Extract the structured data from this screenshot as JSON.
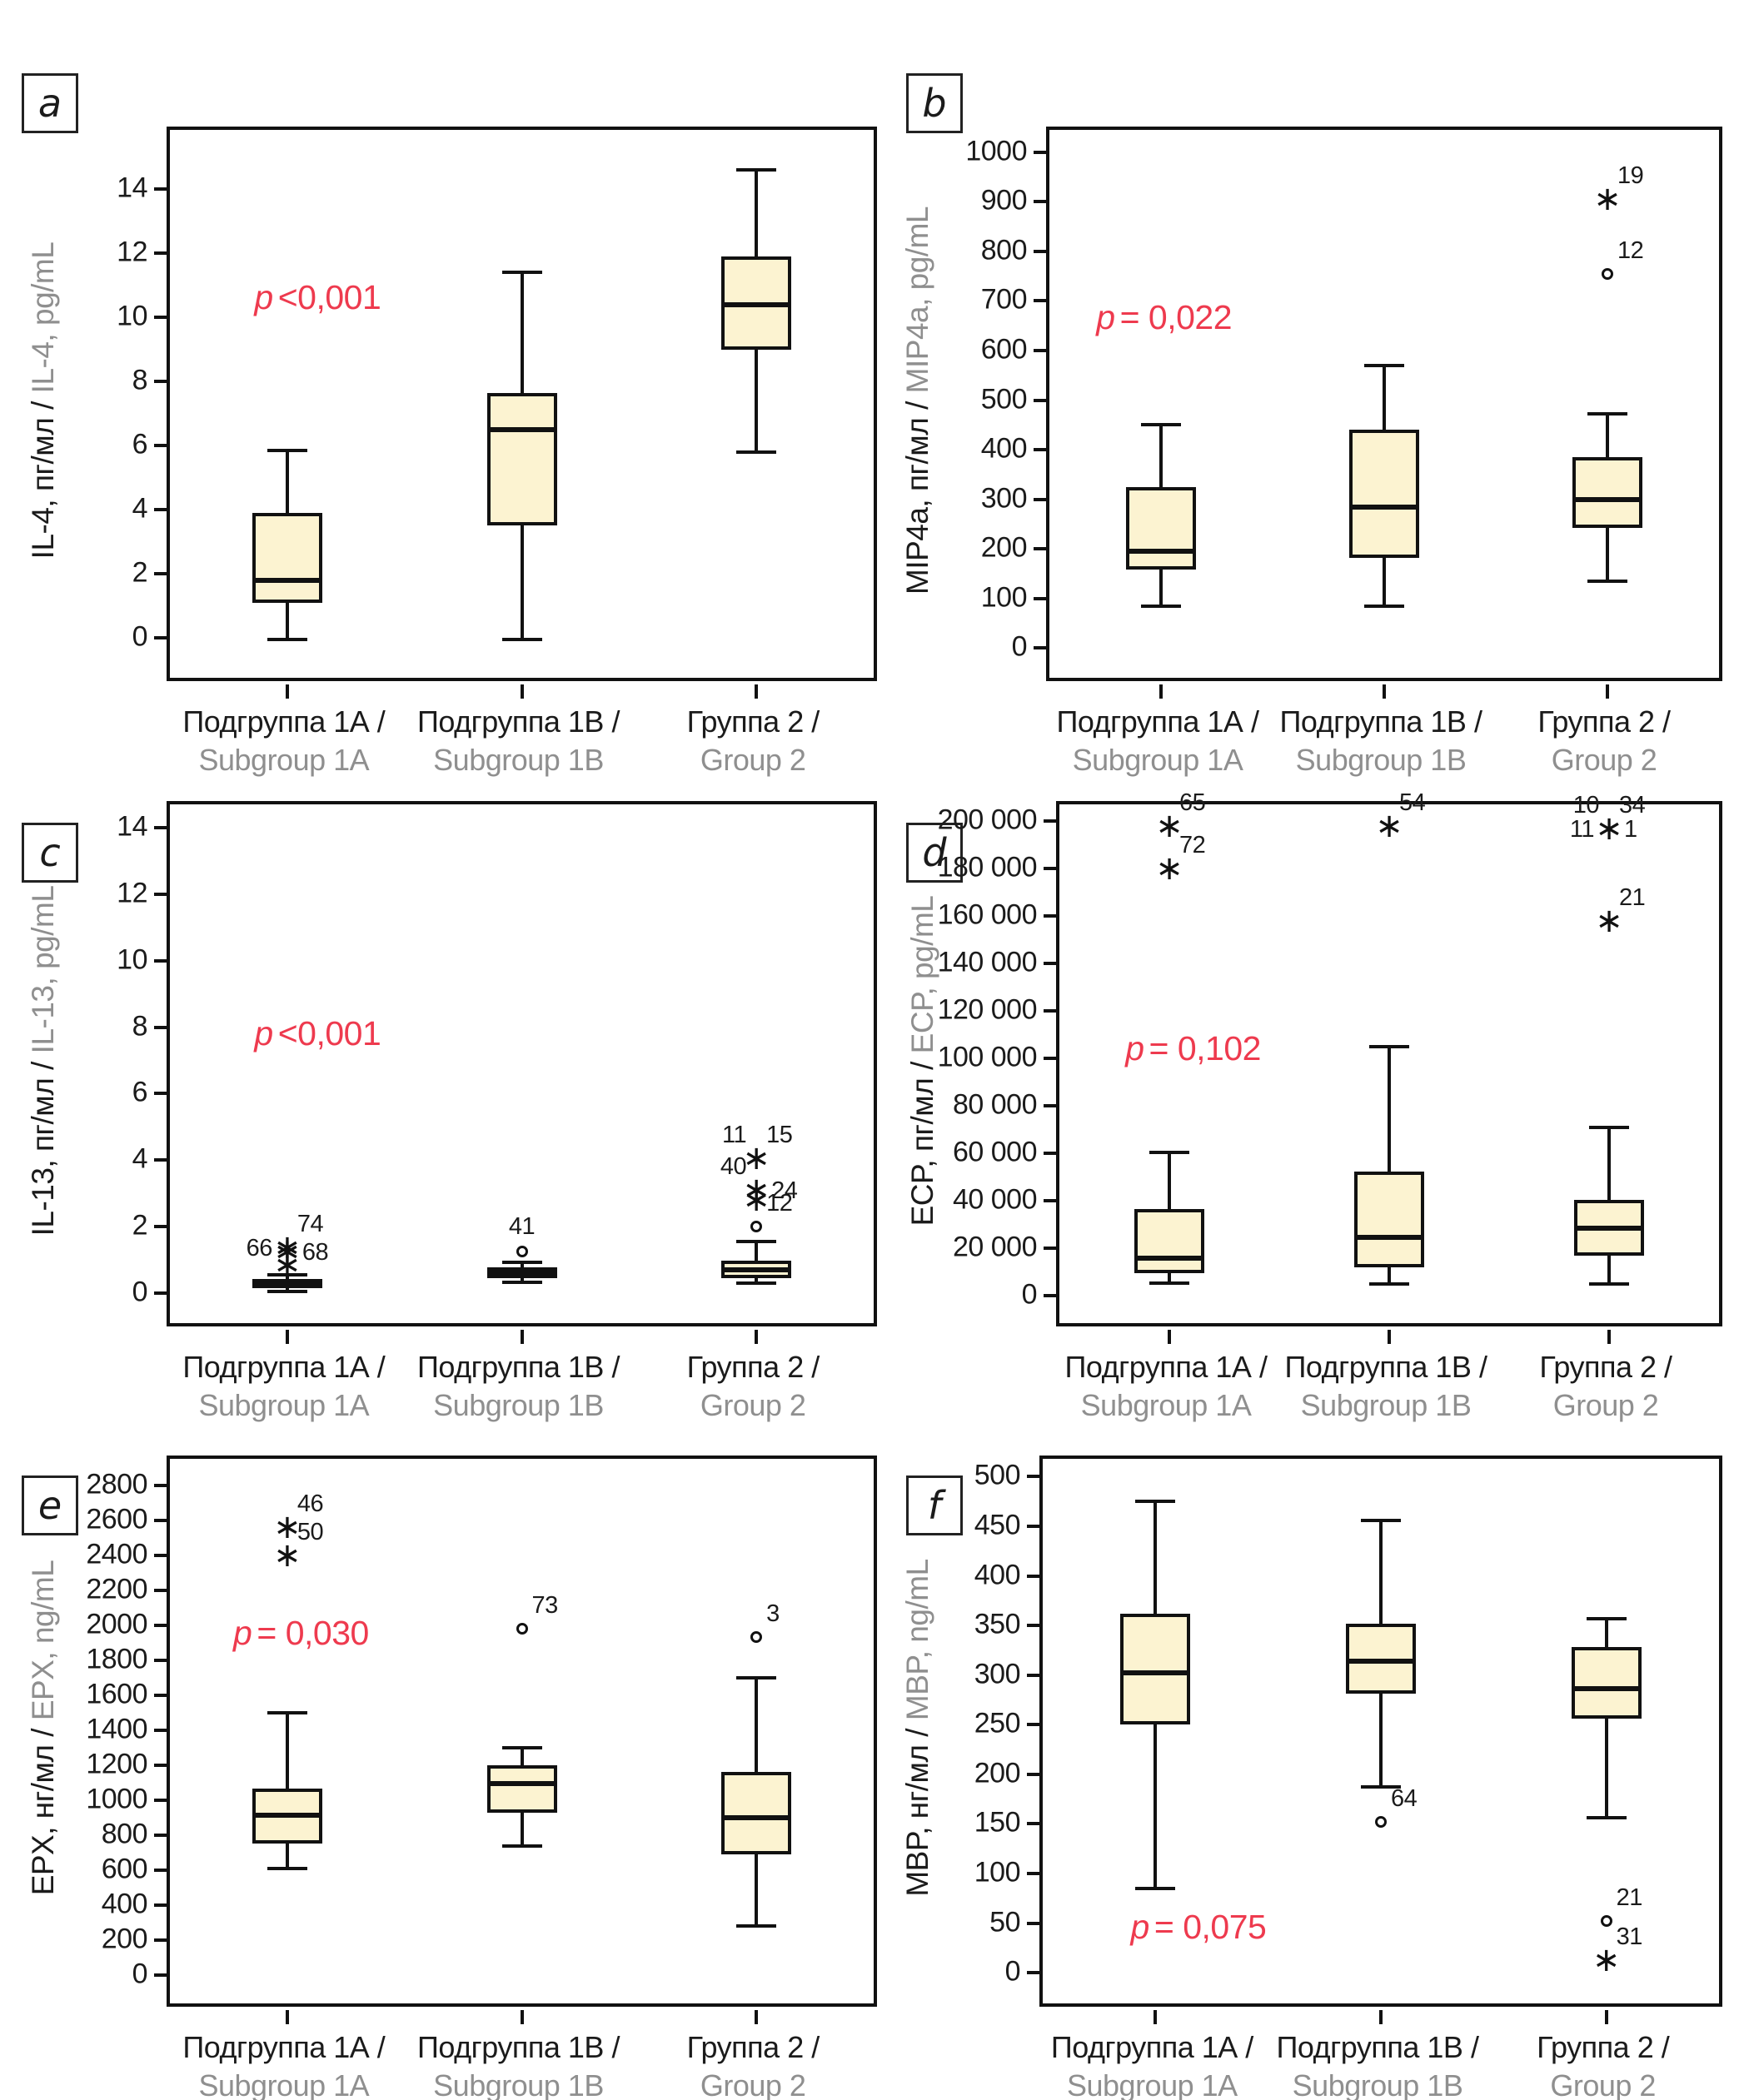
{
  "figure_title": "",
  "colors": {
    "box_fill": "#fcf3d1",
    "line": "#111111",
    "p_value_red": "#ee3a4e",
    "secondary_text_gray": "#8f8f8f",
    "text_black": "#1b1b1b"
  },
  "categories": [
    {
      "ru": "Подгруппа 1А /",
      "en": "Subgroup 1A"
    },
    {
      "ru": "Подгруппа 1В /",
      "en": "Subgroup 1B"
    },
    {
      "ru": "Группа 2 /",
      "en": "Group 2"
    }
  ],
  "chart_data": [
    {
      "panel": "a",
      "type": "box",
      "ylabel_ru": "IL-4, пг/мл / ",
      "ylabel_en": "IL-4, pg/mL",
      "p_italic": "p",
      "p_rest": "<0,001",
      "p_xf": 0.12,
      "p_y": 10.6,
      "ylim": [
        -1.25,
        15.85
      ],
      "ticks": [
        {
          "v": 0,
          "t": "0"
        },
        {
          "v": 2,
          "t": "2"
        },
        {
          "v": 4,
          "t": "4"
        },
        {
          "v": 6,
          "t": "6"
        },
        {
          "v": 8,
          "t": "8"
        },
        {
          "v": 10,
          "t": "10"
        },
        {
          "v": 12,
          "t": "12"
        },
        {
          "v": 14,
          "t": "14"
        }
      ],
      "boxes": [
        {
          "lo": -0.05,
          "q1": 1.1,
          "med": 1.8,
          "q3": 3.9,
          "hi": 5.85,
          "outliers": []
        },
        {
          "lo": -0.05,
          "q1": 3.5,
          "med": 6.5,
          "q3": 7.65,
          "hi": 11.4,
          "outliers": []
        },
        {
          "lo": 5.8,
          "q1": 9.0,
          "med": 10.4,
          "q3": 11.9,
          "hi": 14.6,
          "outliers": []
        }
      ]
    },
    {
      "panel": "b",
      "type": "box",
      "ylabel_ru": "MIP4a, пг/мл / ",
      "ylabel_en": "MIP4a, pg/mL",
      "p_italic": "p",
      "p_rest": "= 0,022",
      "p_xf": 0.07,
      "p_y": 665,
      "ylim": [
        -60,
        1045
      ],
      "ticks": [
        {
          "v": 0,
          "t": "0"
        },
        {
          "v": 100,
          "t": "100"
        },
        {
          "v": 200,
          "t": "200"
        },
        {
          "v": 300,
          "t": "300"
        },
        {
          "v": 400,
          "t": "400"
        },
        {
          "v": 500,
          "t": "500"
        },
        {
          "v": 600,
          "t": "600"
        },
        {
          "v": 700,
          "t": "700"
        },
        {
          "v": 800,
          "t": "800"
        },
        {
          "v": 900,
          "t": "900"
        },
        {
          "v": 1000,
          "t": "1000"
        }
      ],
      "boxes": [
        {
          "lo": 85,
          "q1": 158,
          "med": 196,
          "q3": 325,
          "hi": 450,
          "outliers": []
        },
        {
          "lo": 85,
          "q1": 182,
          "med": 285,
          "q3": 440,
          "hi": 570,
          "outliers": []
        },
        {
          "lo": 135,
          "q1": 242,
          "med": 300,
          "q3": 385,
          "hi": 472,
          "outliers": [
            {
              "v": 905,
              "m": "star",
              "labels": [
                {
                  "t": "19",
                  "pos": "tr"
                }
              ]
            },
            {
              "v": 755,
              "m": "circle",
              "labels": [
                {
                  "t": "12",
                  "pos": "tr"
                }
              ]
            }
          ]
        }
      ]
    },
    {
      "panel": "c",
      "type": "box",
      "ylabel_ru": "IL-13, пг/мл / ",
      "ylabel_en": "IL-13, pg/mL",
      "p_italic": "p",
      "p_rest": "<0,001",
      "p_xf": 0.12,
      "p_y": 7.8,
      "ylim": [
        -0.9,
        14.7
      ],
      "ticks": [
        {
          "v": 0,
          "t": "0"
        },
        {
          "v": 2,
          "t": "2"
        },
        {
          "v": 4,
          "t": "4"
        },
        {
          "v": 6,
          "t": "6"
        },
        {
          "v": 8,
          "t": "8"
        },
        {
          "v": 10,
          "t": "10"
        },
        {
          "v": 12,
          "t": "12"
        },
        {
          "v": 14,
          "t": "14"
        }
      ],
      "boxes": [
        {
          "lo": 0.04,
          "q1": 0.15,
          "med": 0.27,
          "q3": 0.43,
          "hi": 0.55,
          "outliers": [
            {
              "v": 1.37,
              "m": "star",
              "labels": [
                {
                  "t": "66",
                  "pos": "l"
                },
                {
                  "t": "74",
                  "pos": "tr"
                }
              ]
            },
            {
              "v": 1.26,
              "m": "star",
              "labels": [
                {
                  "t": "68",
                  "pos": "r"
                }
              ]
            },
            {
              "v": 0.85,
              "m": "star",
              "labels": []
            }
          ]
        },
        {
          "lo": 0.33,
          "q1": 0.45,
          "med": 0.62,
          "q3": 0.78,
          "hi": 0.93,
          "outliers": [
            {
              "v": 1.25,
              "m": "circle",
              "labels": [
                {
                  "t": "41",
                  "pos": "t"
                }
              ]
            }
          ]
        },
        {
          "lo": 0.3,
          "q1": 0.45,
          "med": 0.7,
          "q3": 0.97,
          "hi": 1.55,
          "outliers": [
            {
              "v": 4.05,
              "m": "star",
              "labels": [
                {
                  "t": "11",
                  "pos": "tl"
                },
                {
                  "t": "15",
                  "pos": "tr"
                }
              ]
            },
            {
              "v": 3.1,
              "m": "star",
              "labels": [
                {
                  "t": "40",
                  "pos": "tl"
                },
                {
                  "t": "24",
                  "pos": "r"
                }
              ]
            },
            {
              "v": 2.8,
              "m": "star",
              "labels": []
            },
            {
              "v": 2.0,
              "m": "circle",
              "labels": [
                {
                  "t": "12",
                  "pos": "tr"
                }
              ]
            }
          ]
        }
      ]
    },
    {
      "panel": "d",
      "type": "box",
      "ylabel_ru": "ECP, пг/мл / ",
      "ylabel_en": "ECP, pg/mL",
      "p_italic": "p",
      "p_rest": "= 0,102",
      "p_xf": 0.1,
      "p_y": 104000,
      "ylim": [
        -11500,
        207000
      ],
      "ticks": [
        {
          "v": 0,
          "t": "0"
        },
        {
          "v": 20000,
          "t": "20 000"
        },
        {
          "v": 40000,
          "t": "40 000"
        },
        {
          "v": 60000,
          "t": "60 000"
        },
        {
          "v": 80000,
          "t": "80 000"
        },
        {
          "v": 100000,
          "t": "100 000"
        },
        {
          "v": 120000,
          "t": "120 000"
        },
        {
          "v": 140000,
          "t": "140 000"
        },
        {
          "v": 160000,
          "t": "160 000"
        },
        {
          "v": 180000,
          "t": "180 000"
        },
        {
          "v": 200000,
          "t": "200 000"
        }
      ],
      "boxes": [
        {
          "lo": 5500,
          "q1": 9500,
          "med": 16000,
          "q3": 36500,
          "hi": 60500,
          "outliers": [
            {
              "v": 198000,
              "m": "star",
              "labels": [
                {
                  "t": "65",
                  "pos": "tr"
                }
              ]
            },
            {
              "v": 180000,
              "m": "star",
              "labels": [
                {
                  "t": "72",
                  "pos": "tr"
                }
              ]
            }
          ]
        },
        {
          "lo": 5000,
          "q1": 12000,
          "med": 24500,
          "q3": 52500,
          "hi": 105000,
          "outliers": [
            {
              "v": 198000,
              "m": "star",
              "labels": [
                {
                  "t": "54",
                  "pos": "tr"
                }
              ]
            }
          ]
        },
        {
          "lo": 5000,
          "q1": 17000,
          "med": 28500,
          "q3": 40500,
          "hi": 71000,
          "outliers": [
            {
              "v": 197000,
              "m": "star",
              "labels": [
                {
                  "t": "10",
                  "pos": "tl"
                },
                {
                  "t": "34",
                  "pos": "tr"
                },
                {
                  "t": "11",
                  "pos": "l"
                },
                {
                  "t": "1",
                  "pos": "r"
                }
              ]
            },
            {
              "v": 158000,
              "m": "star",
              "labels": [
                {
                  "t": "21",
                  "pos": "tr"
                }
              ]
            }
          ]
        }
      ]
    },
    {
      "panel": "e",
      "type": "box",
      "ylabel_ru": "EPX, нг/мл / ",
      "ylabel_en": "EPX, ng/mL",
      "p_italic": "p",
      "p_rest": "= 0,030",
      "p_xf": 0.09,
      "p_y": 1950,
      "ylim": [
        -160,
        2950
      ],
      "ticks": [
        {
          "v": 0,
          "t": "0"
        },
        {
          "v": 200,
          "t": "200"
        },
        {
          "v": 400,
          "t": "400"
        },
        {
          "v": 600,
          "t": "600"
        },
        {
          "v": 800,
          "t": "800"
        },
        {
          "v": 1000,
          "t": "1000"
        },
        {
          "v": 1200,
          "t": "1200"
        },
        {
          "v": 1400,
          "t": "1400"
        },
        {
          "v": 1600,
          "t": "1600"
        },
        {
          "v": 1800,
          "t": "1800"
        },
        {
          "v": 2000,
          "t": "2000"
        },
        {
          "v": 2200,
          "t": "2200"
        },
        {
          "v": 2400,
          "t": "2400"
        },
        {
          "v": 2600,
          "t": "2600"
        },
        {
          "v": 2800,
          "t": "2800"
        }
      ],
      "boxes": [
        {
          "lo": 610,
          "q1": 755,
          "med": 915,
          "q3": 1065,
          "hi": 1500,
          "outliers": [
            {
              "v": 2560,
              "m": "star",
              "labels": [
                {
                  "t": "46",
                  "pos": "tr"
                }
              ]
            },
            {
              "v": 2400,
              "m": "star",
              "labels": [
                {
                  "t": "50",
                  "pos": "tr"
                }
              ]
            }
          ]
        },
        {
          "lo": 740,
          "q1": 930,
          "med": 1095,
          "q3": 1200,
          "hi": 1300,
          "outliers": [
            {
              "v": 1980,
              "m": "circle",
              "labels": [
                {
                  "t": "73",
                  "pos": "tr"
                }
              ]
            }
          ]
        },
        {
          "lo": 280,
          "q1": 690,
          "med": 900,
          "q3": 1160,
          "hi": 1700,
          "outliers": [
            {
              "v": 1930,
              "m": "circle",
              "labels": [
                {
                  "t": "3",
                  "pos": "tr"
                }
              ]
            }
          ]
        }
      ]
    },
    {
      "panel": "f",
      "type": "box",
      "ylabel_ru": "MBP, нг/мл / ",
      "ylabel_en": "MBP, ng/mL",
      "p_italic": "p",
      "p_rest": "= 0,075",
      "p_xf": 0.13,
      "p_y": 45,
      "ylim": [
        -31,
        518
      ],
      "ticks": [
        {
          "v": 0,
          "t": "0"
        },
        {
          "v": 50,
          "t": "50"
        },
        {
          "v": 100,
          "t": "100"
        },
        {
          "v": 150,
          "t": "150"
        },
        {
          "v": 200,
          "t": "200"
        },
        {
          "v": 250,
          "t": "250"
        },
        {
          "v": 300,
          "t": "300"
        },
        {
          "v": 350,
          "t": "350"
        },
        {
          "v": 400,
          "t": "400"
        },
        {
          "v": 450,
          "t": "450"
        },
        {
          "v": 500,
          "t": "500"
        }
      ],
      "boxes": [
        {
          "lo": 85,
          "q1": 250,
          "med": 302,
          "q3": 362,
          "hi": 475,
          "outliers": []
        },
        {
          "lo": 187,
          "q1": 281,
          "med": 314,
          "q3": 352,
          "hi": 456,
          "outliers": [
            {
              "v": 152,
              "m": "circle",
              "labels": [
                {
                  "t": "64",
                  "pos": "tr"
                }
              ]
            }
          ]
        },
        {
          "lo": 156,
          "q1": 256,
          "med": 286,
          "q3": 328,
          "hi": 357,
          "outliers": [
            {
              "v": 52,
              "m": "circle",
              "labels": [
                {
                  "t": "21",
                  "pos": "tr"
                }
              ]
            },
            {
              "v": 13,
              "m": "star",
              "labels": [
                {
                  "t": "31",
                  "pos": "tr"
                }
              ]
            }
          ]
        }
      ]
    }
  ]
}
